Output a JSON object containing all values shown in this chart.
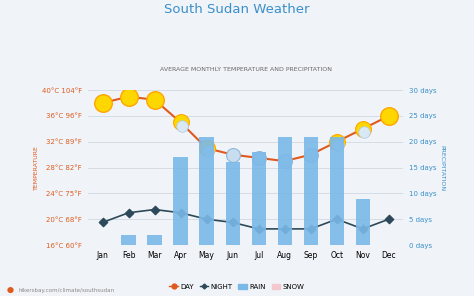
{
  "title": "South Sudan Weather",
  "subtitle": "AVERAGE MONTHLY TEMPERATURE AND PRECIPITATION",
  "months": [
    "Jan",
    "Feb",
    "Mar",
    "Apr",
    "May",
    "Jun",
    "Jul",
    "Aug",
    "Sep",
    "Oct",
    "Nov",
    "Dec"
  ],
  "day_temp": [
    38.0,
    39.0,
    38.5,
    35.0,
    31.0,
    30.0,
    29.5,
    29.0,
    30.0,
    32.0,
    34.0,
    36.0
  ],
  "night_temp": [
    19.5,
    21.0,
    21.5,
    21.0,
    20.0,
    19.5,
    18.5,
    18.5,
    18.5,
    20.0,
    18.5,
    20.0
  ],
  "rain_days": [
    0,
    2,
    2,
    17,
    21,
    16,
    18,
    21,
    21,
    21,
    9,
    0
  ],
  "temp_min": 16,
  "temp_max": 40,
  "precip_min": 0,
  "precip_max": 30,
  "temp_yticks": [
    16,
    20,
    24,
    28,
    32,
    36,
    40
  ],
  "temp_ylabels": [
    "16°C 60°F",
    "20°C 68°F",
    "24°C 75°F",
    "28°C 82°F",
    "32°C 89°F",
    "36°C 96°F",
    "40°C 104°F"
  ],
  "precip_yticks": [
    0,
    5,
    10,
    15,
    20,
    25,
    30
  ],
  "precip_ylabels": [
    "0 days",
    "5 days",
    "10 days",
    "15 days",
    "20 days",
    "25 days",
    "30 days"
  ],
  "day_color": "#e05a1e",
  "night_color": "#2d4a5a",
  "bar_color": "#7ab8e8",
  "title_color": "#3a8fca",
  "subtitle_color": "#666666",
  "axis_label_color": "#e05a1e",
  "right_axis_color": "#3a8fca",
  "bg_color": "#f0f4f8",
  "grid_color": "#d0d8e0",
  "watermark": "hikersbay.com/climate/southsudan",
  "ylabel_left": "TEMPERATURE",
  "ylabel_right": "PRECIPITATION",
  "sun_months": [
    0,
    1,
    2,
    11
  ],
  "partly_cloudy_months": [
    3,
    4,
    9,
    10
  ],
  "cloudy_months": [
    5,
    6,
    7,
    8
  ]
}
